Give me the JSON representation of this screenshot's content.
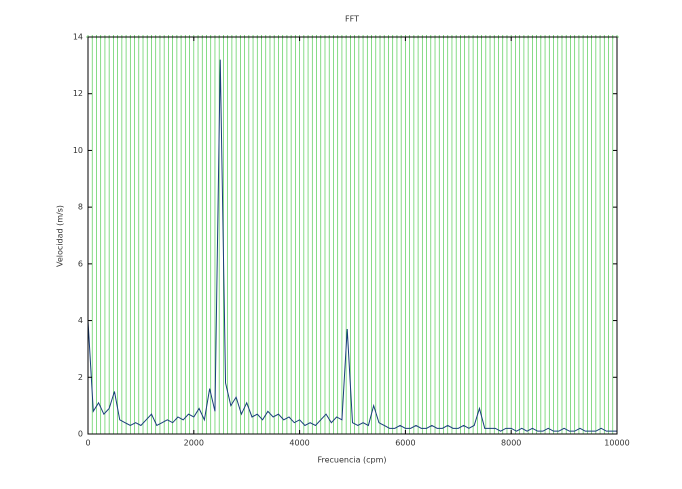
{
  "chart_data": {
    "type": "line",
    "title": "FFT",
    "xlabel": "Frecuencia (cpm)",
    "ylabel": "Velocidad (m/s)",
    "xlim": [
      0,
      10000
    ],
    "ylim": [
      0,
      14
    ],
    "xticks": [
      0,
      2000,
      4000,
      6000,
      8000,
      10000
    ],
    "yticks": [
      0,
      2,
      4,
      6,
      8,
      10,
      12,
      14
    ],
    "series": [
      {
        "color": "#1a3f7a",
        "x": [
          0,
          100,
          200,
          300,
          400,
          500,
          600,
          700,
          800,
          900,
          1000,
          1100,
          1200,
          1300,
          1400,
          1500,
          1600,
          1700,
          1800,
          1900,
          2000,
          2100,
          2200,
          2300,
          2400,
          2500,
          2600,
          2700,
          2800,
          2900,
          3000,
          3100,
          3200,
          3300,
          3400,
          3500,
          3600,
          3700,
          3800,
          3900,
          4000,
          4100,
          4200,
          4300,
          4400,
          4500,
          4600,
          4700,
          4800,
          4900,
          5000,
          5100,
          5200,
          5300,
          5400,
          5500,
          5600,
          5700,
          5800,
          5900,
          6000,
          6100,
          6200,
          6300,
          6400,
          6500,
          6600,
          6700,
          6800,
          6900,
          7000,
          7100,
          7200,
          7300,
          7400,
          7500,
          7600,
          7700,
          7800,
          7900,
          8000,
          8100,
          8200,
          8300,
          8400,
          8500,
          8600,
          8700,
          8800,
          8900,
          9000,
          9100,
          9200,
          9300,
          9400,
          9500,
          9600,
          9700,
          9800,
          9900,
          10000
        ],
        "values": [
          4.0,
          0.8,
          1.1,
          0.7,
          0.9,
          1.5,
          0.5,
          0.4,
          0.3,
          0.4,
          0.3,
          0.5,
          0.7,
          0.3,
          0.4,
          0.5,
          0.4,
          0.6,
          0.5,
          0.7,
          0.6,
          0.9,
          0.5,
          1.6,
          0.8,
          13.2,
          1.8,
          1.0,
          1.3,
          0.7,
          1.1,
          0.6,
          0.7,
          0.5,
          0.8,
          0.6,
          0.7,
          0.5,
          0.6,
          0.4,
          0.5,
          0.3,
          0.4,
          0.3,
          0.5,
          0.7,
          0.4,
          0.6,
          0.5,
          3.7,
          0.4,
          0.3,
          0.4,
          0.3,
          1.0,
          0.4,
          0.3,
          0.2,
          0.2,
          0.3,
          0.2,
          0.2,
          0.3,
          0.2,
          0.2,
          0.3,
          0.2,
          0.2,
          0.3,
          0.2,
          0.2,
          0.3,
          0.2,
          0.3,
          0.9,
          0.2,
          0.2,
          0.2,
          0.1,
          0.2,
          0.2,
          0.1,
          0.2,
          0.1,
          0.2,
          0.1,
          0.1,
          0.2,
          0.1,
          0.1,
          0.2,
          0.1,
          0.1,
          0.2,
          0.1,
          0.1,
          0.1,
          0.2,
          0.1,
          0.1,
          0.1
        ]
      },
      {
        "type": "stem",
        "color": "#55cc55",
        "x": [
          0,
          80,
          160,
          240,
          320,
          400,
          480,
          560,
          640,
          720,
          800,
          880,
          960,
          1040,
          1120,
          1200,
          1280,
          1360,
          1440,
          1520,
          1600,
          1680,
          1760,
          1840,
          1920,
          2000,
          2080,
          2160,
          2240,
          2320,
          2400,
          2480,
          2560,
          2640,
          2720,
          2800,
          2880,
          2960,
          3040,
          3120,
          3200,
          3280,
          3360,
          3440,
          3520,
          3600,
          3680,
          3760,
          3840,
          3920,
          4000,
          4080,
          4160,
          4240,
          4320,
          4400,
          4480,
          4560,
          4640,
          4720,
          4800,
          4880,
          4960,
          5040,
          5120,
          5200,
          5280,
          5360,
          5440,
          5520,
          5600,
          5680,
          5760,
          5840,
          5920,
          6000,
          6080,
          6160,
          6240,
          6320,
          6400,
          6480,
          6560,
          6640,
          6720,
          6800,
          6880,
          6960,
          7040,
          7120,
          7200,
          7280,
          7360,
          7440,
          7520,
          7600,
          7680,
          7760,
          7840,
          7920,
          8000,
          8080,
          8160,
          8240,
          8320,
          8400,
          8480,
          8560,
          8640,
          8720,
          8800,
          8880,
          8960,
          9040,
          9120,
          9200,
          9280,
          9360,
          9440,
          9520,
          9600,
          9680,
          9760,
          9840,
          9920,
          10000
        ],
        "values": [
          14,
          14,
          14,
          14,
          14,
          14,
          14,
          14,
          14,
          14,
          14,
          14,
          14,
          14,
          14,
          14,
          14,
          14,
          14,
          14,
          14,
          14,
          14,
          14,
          14,
          14,
          14,
          14,
          14,
          14,
          14,
          14,
          14,
          14,
          14,
          14,
          14,
          14,
          14,
          14,
          14,
          14,
          14,
          14,
          14,
          14,
          14,
          14,
          14,
          14,
          14,
          14,
          14,
          14,
          14,
          14,
          14,
          14,
          14,
          14,
          14,
          14,
          14,
          14,
          14,
          14,
          14,
          14,
          14,
          14,
          14,
          14,
          14,
          14,
          14,
          14,
          14,
          14,
          14,
          14,
          14,
          14,
          14,
          14,
          14,
          14,
          14,
          14,
          14,
          14,
          14,
          14,
          14,
          14,
          14,
          14,
          14,
          14,
          14,
          14,
          14,
          14,
          14,
          14,
          14,
          14,
          14,
          14,
          14,
          14,
          14,
          14,
          14,
          14,
          14,
          14,
          14,
          14,
          14,
          14,
          14,
          14,
          14,
          14,
          14,
          14
        ]
      }
    ]
  }
}
